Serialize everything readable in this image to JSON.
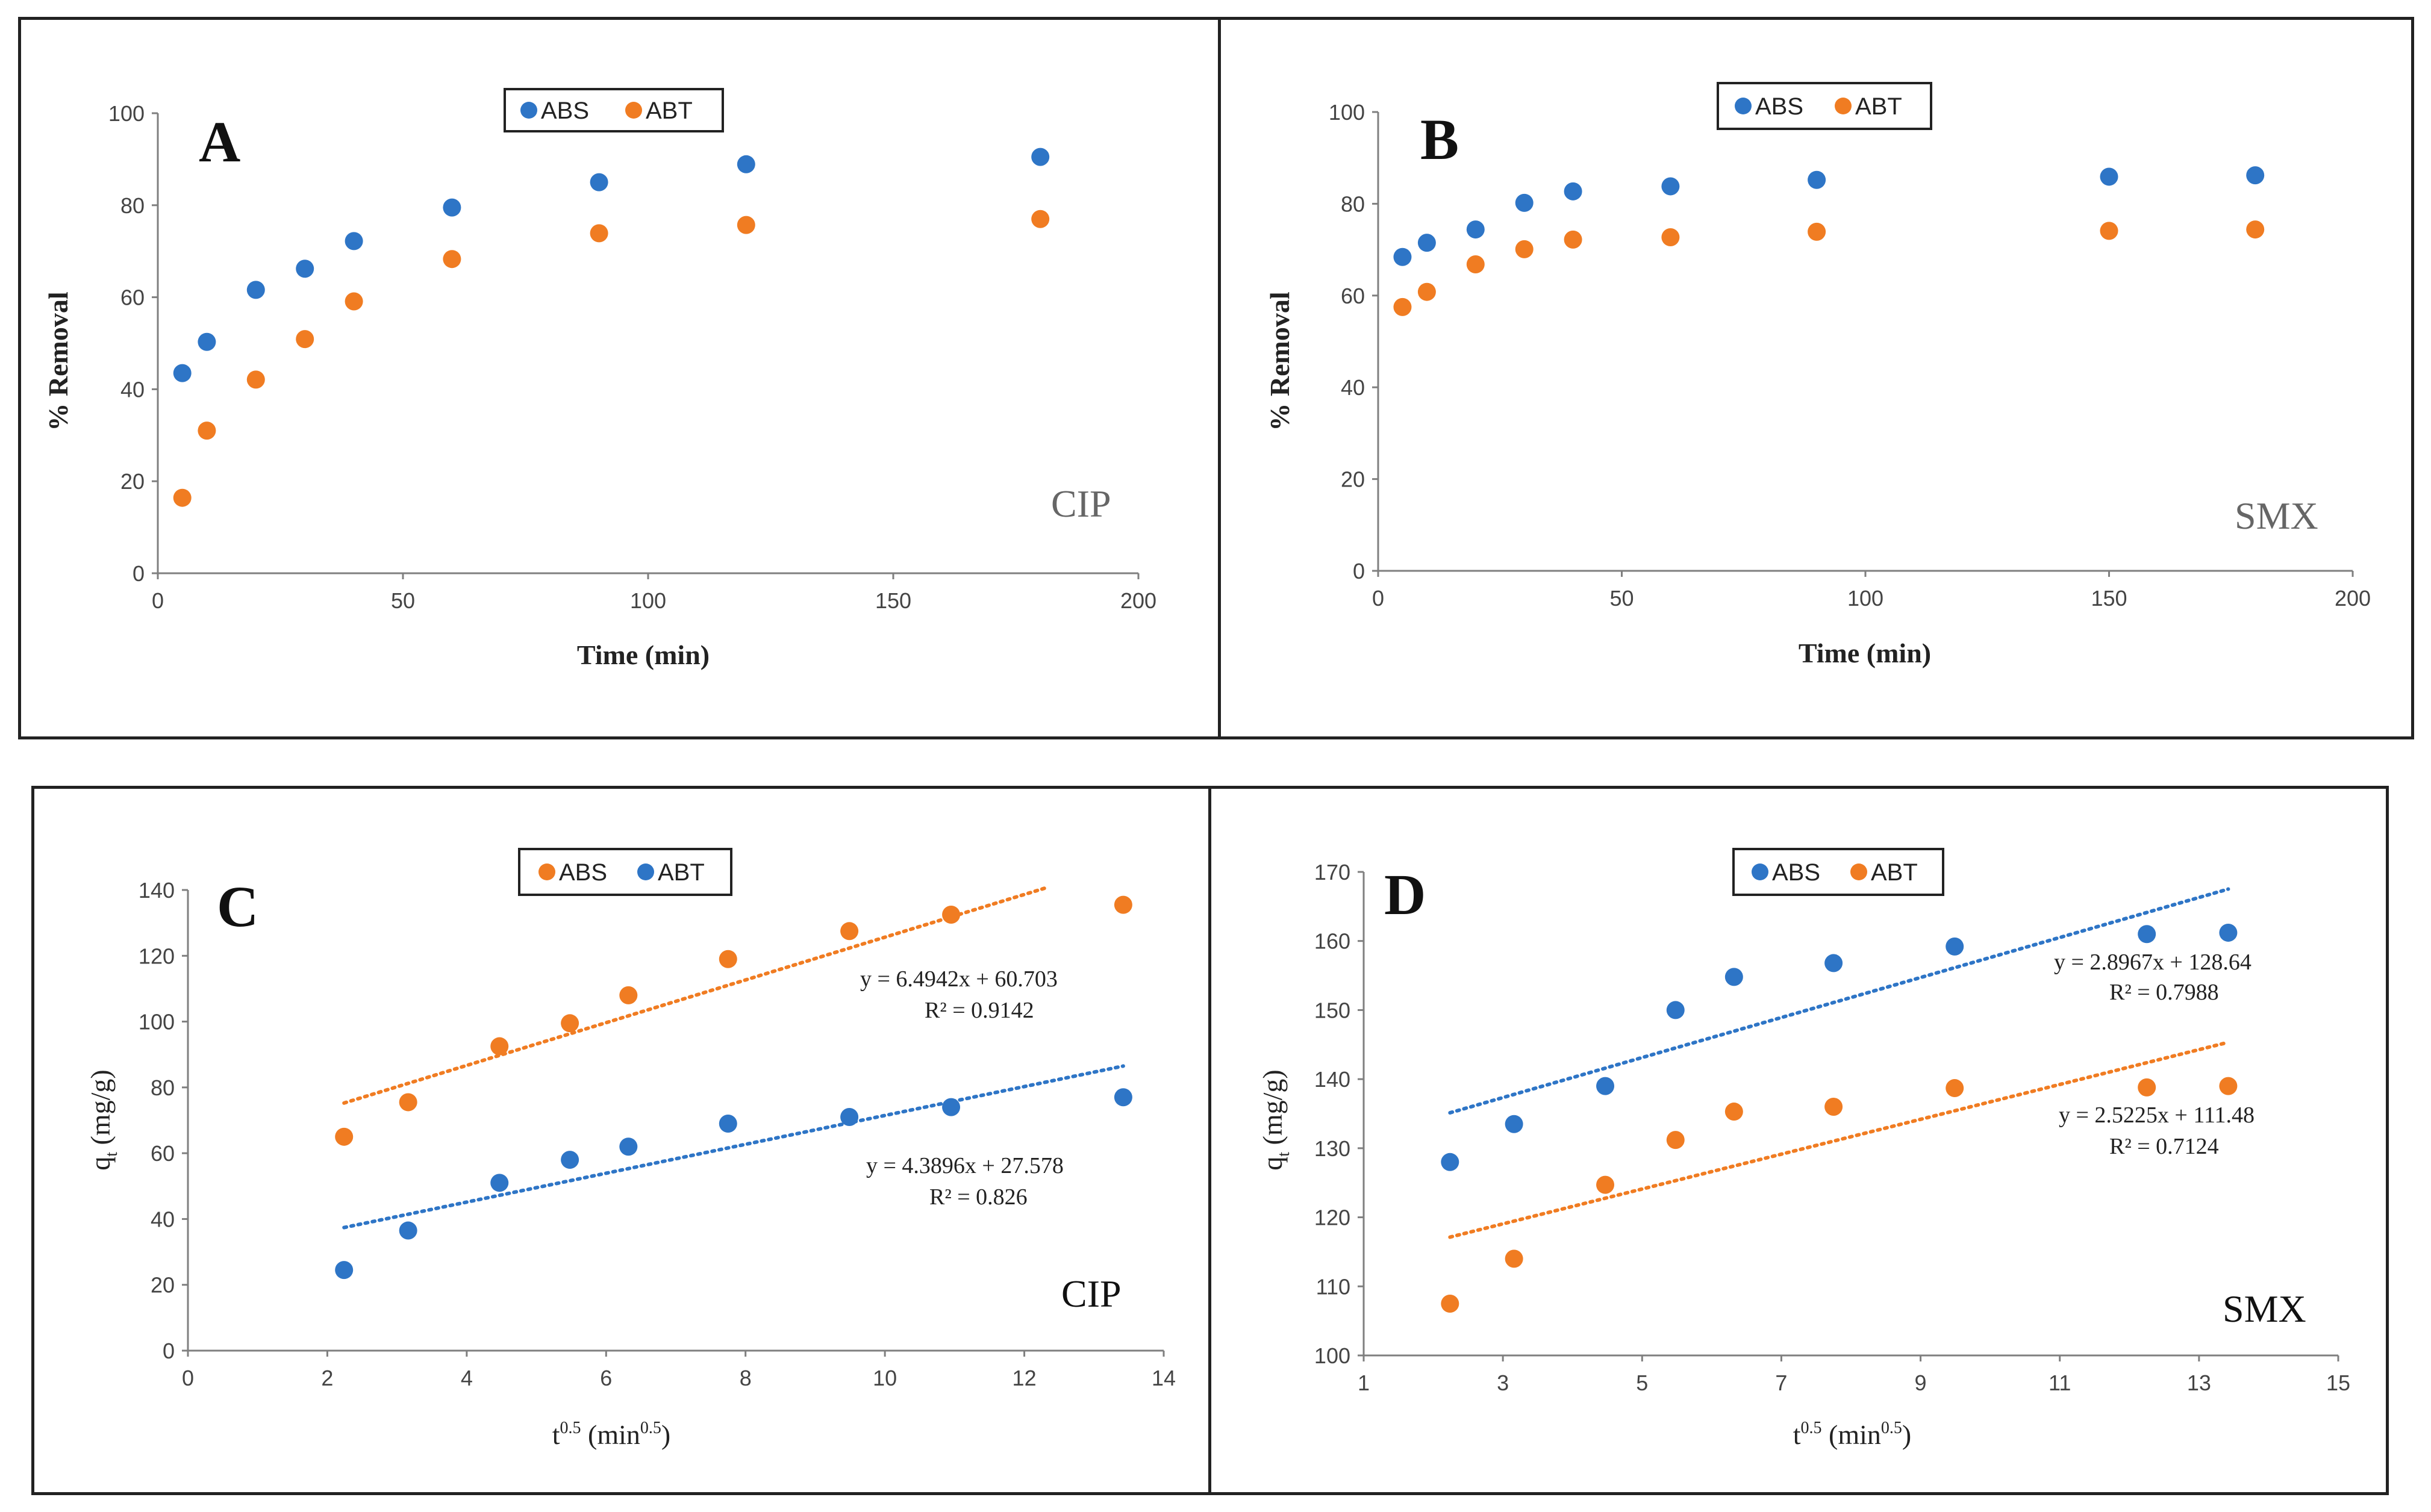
{
  "colors": {
    "blue": "#2e75c6",
    "orange": "#f07c22",
    "axis": "#7f7f7f",
    "frame": "#222222"
  },
  "chart_data": [
    {
      "id": "A",
      "type": "scatter",
      "panel_letter": "A",
      "corner_label": "CIP",
      "xlabel": "Time (min)",
      "ylabel": "% Removal",
      "xlim": [
        0,
        200
      ],
      "ylim": [
        0,
        100
      ],
      "xticks": [
        0,
        50,
        100,
        150,
        200
      ],
      "yticks": [
        0,
        20,
        40,
        60,
        80,
        100
      ],
      "legend": [
        "ABS",
        "ABT"
      ],
      "series": [
        {
          "name": "ABS",
          "color": "blue",
          "x": [
            5,
            10,
            20,
            30,
            40,
            60,
            90,
            120,
            180
          ],
          "y": [
            43.5,
            50.3,
            61.6,
            66.2,
            72.2,
            79.5,
            85,
            88.9,
            90.5
          ]
        },
        {
          "name": "ABT",
          "color": "orange",
          "x": [
            5,
            10,
            20,
            30,
            40,
            60,
            90,
            120,
            180
          ],
          "y": [
            16.4,
            31,
            42.1,
            50.9,
            59.1,
            68.3,
            73.9,
            75.7,
            77
          ]
        }
      ]
    },
    {
      "id": "B",
      "type": "scatter",
      "panel_letter": "B",
      "corner_label": "SMX",
      "xlabel": "Time (min)",
      "ylabel": "% Removal",
      "xlim": [
        0,
        200
      ],
      "ylim": [
        0,
        100
      ],
      "xticks": [
        0,
        50,
        100,
        150,
        200
      ],
      "yticks": [
        0,
        20,
        40,
        60,
        80,
        100
      ],
      "legend": [
        "ABS",
        "ABT"
      ],
      "series": [
        {
          "name": "ABS",
          "color": "blue",
          "x": [
            5,
            10,
            20,
            30,
            40,
            60,
            90,
            150,
            180
          ],
          "y": [
            68.4,
            71.5,
            74.4,
            80.2,
            82.7,
            83.8,
            85.2,
            85.9,
            86.2
          ]
        },
        {
          "name": "ABT",
          "color": "orange",
          "x": [
            5,
            10,
            20,
            30,
            40,
            60,
            90,
            150,
            180
          ],
          "y": [
            57.5,
            60.8,
            66.8,
            70.1,
            72.2,
            72.7,
            73.9,
            74.1,
            74.4
          ]
        }
      ]
    },
    {
      "id": "C",
      "type": "scatter",
      "panel_letter": "C",
      "corner_label": "CIP",
      "xlabel_main": "t",
      "xlabel_sup": "0.5",
      "xlabel_unit": " (min",
      "xlabel_unit_sup": "0.5",
      "xlabel_close": ")",
      "ylabel_main": "q",
      "ylabel_sub": "t",
      "ylabel_unit": " (mg/g)",
      "xlim": [
        0,
        14
      ],
      "ylim": [
        0,
        140
      ],
      "xticks": [
        0,
        2,
        4,
        6,
        8,
        10,
        12,
        14
      ],
      "yticks": [
        0,
        20,
        40,
        60,
        80,
        100,
        120,
        140
      ],
      "legend": [
        "ABS",
        "ABT"
      ],
      "series": [
        {
          "name": "ABS",
          "color": "orange",
          "x": [
            2.24,
            3.16,
            4.47,
            5.48,
            6.32,
            7.75,
            9.49,
            10.95,
            13.42
          ],
          "y": [
            65,
            75.5,
            92.5,
            99.5,
            108,
            119,
            127.5,
            132.5,
            135.5
          ],
          "trend": {
            "slope": 6.4942,
            "intercept": 60.703,
            "x_range": [
              2.24,
              12.3
            ]
          }
        },
        {
          "name": "ABT",
          "color": "blue",
          "x": [
            2.24,
            3.16,
            4.47,
            5.48,
            6.32,
            7.75,
            9.49,
            10.95,
            13.42
          ],
          "y": [
            24.5,
            36.5,
            51,
            58,
            62,
            69,
            71,
            74,
            77
          ],
          "trend": {
            "slope": 4.3896,
            "intercept": 27.578,
            "x_range": [
              2.24,
              13.42
            ]
          }
        }
      ],
      "equations": [
        {
          "eq": "y = 6.4942x + 60.703",
          "r2": "R² = 0.9142"
        },
        {
          "eq": "y = 4.3896x + 27.578",
          "r2": "R² = 0.826"
        }
      ]
    },
    {
      "id": "D",
      "type": "scatter",
      "panel_letter": "D",
      "corner_label": "SMX",
      "xlabel_main": "t",
      "xlabel_sup": "0.5",
      "xlabel_unit": " (min",
      "xlabel_unit_sup": "0.5",
      "xlabel_close": ")",
      "ylabel_main": "q",
      "ylabel_sub": "t",
      "ylabel_unit": " (mg/g)",
      "xlim": [
        1,
        15
      ],
      "ylim": [
        100,
        170
      ],
      "xticks": [
        1,
        3,
        5,
        7,
        9,
        11,
        13,
        15
      ],
      "yticks": [
        100,
        110,
        120,
        130,
        140,
        150,
        160,
        170
      ],
      "legend": [
        "ABS",
        "ABT"
      ],
      "series": [
        {
          "name": "ABS",
          "color": "blue",
          "x": [
            2.24,
            3.16,
            4.47,
            5.48,
            6.32,
            7.75,
            9.49,
            12.25,
            13.42
          ],
          "y": [
            128,
            133.5,
            139,
            150,
            154.8,
            156.8,
            159.2,
            161,
            161.2
          ],
          "trend": {
            "slope": 2.8967,
            "intercept": 128.64,
            "x_range": [
              2.24,
              13.42
            ]
          }
        },
        {
          "name": "ABT",
          "color": "orange",
          "x": [
            2.24,
            3.16,
            4.47,
            5.48,
            6.32,
            7.75,
            9.49,
            12.25,
            13.42
          ],
          "y": [
            107.5,
            114,
            124.7,
            131.2,
            135.3,
            136,
            138.7,
            138.8,
            139
          ],
          "trend": {
            "slope": 2.5225,
            "intercept": 111.48,
            "x_range": [
              2.24,
              13.42
            ]
          }
        }
      ],
      "equations": [
        {
          "eq": "y = 2.8967x + 128.64",
          "r2": "R² = 0.7988"
        },
        {
          "eq": "y = 2.5225x + 111.48",
          "r2": "R² = 0.7124"
        }
      ]
    }
  ]
}
